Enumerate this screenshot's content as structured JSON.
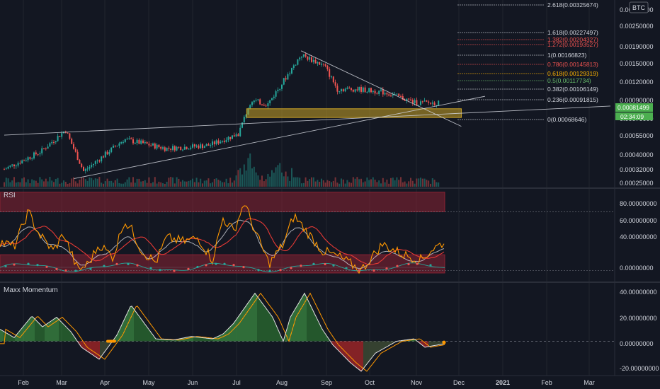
{
  "colors": {
    "background": "#131722",
    "up": "#26a69a",
    "down": "#ef5350",
    "grid": "#2a2e39",
    "text": "#d1d4dc",
    "support_zone": "#c9a227",
    "price_tag": "#4caf50",
    "rsi_line": "#ff9800",
    "rsi_ma": "#e53935",
    "rsi_smooth": "#d1d4dc",
    "rsi_band": "#8b2233",
    "fib_gold": "#ffb300",
    "fib_green": "#66bb6a",
    "fib_red": "#ef5350",
    "mom_up": "#43a047",
    "mom_down": "#c62828",
    "mom_neutral": "#4a5a3a"
  },
  "currency_badge": "BTC",
  "price_tags": {
    "last_price": "0.00081499",
    "countdown": "02:34:09"
  },
  "fib_levels": [
    {
      "label": "2.618(0.00325674)",
      "color": "#d1d4dc"
    },
    {
      "label": "1.618(0.00227497)",
      "color": "#d1d4dc"
    },
    {
      "label": "1.382(0.00204327)",
      "color": "#ef5350"
    },
    {
      "label": "1.272(0.00193527)",
      "color": "#ef5350"
    },
    {
      "label": "1(0.00166823)",
      "color": "#d1d4dc"
    },
    {
      "label": "0.786(0.00145813)",
      "color": "#ef5350"
    },
    {
      "label": "0.618(0.00129319)",
      "color": "#ffb300"
    },
    {
      "label": "0.5(0.00117734)",
      "color": "#66bb6a"
    },
    {
      "label": "0.382(0.00106149)",
      "color": "#d1d4dc"
    },
    {
      "label": "0.236(0.00091815)",
      "color": "#d1d4dc"
    },
    {
      "label": "0(0.00068646)",
      "color": "#d1d4dc"
    }
  ],
  "price_axis_ticks": [
    "0.00380000",
    "0.00250000",
    "0.00190000",
    "0.00150000",
    "0.00120000",
    "0.00090000",
    "0.00070000",
    "0.00055000",
    "0.00040000",
    "0.00032000",
    "0.00025000"
  ],
  "x_axis_ticks": [
    "Feb",
    "Mar",
    "Apr",
    "May",
    "Jun",
    "Jul",
    "Aug",
    "Sep",
    "Oct",
    "Nov",
    "Dec",
    "2021",
    "Feb",
    "Mar"
  ],
  "rsi_pane": {
    "title": "RSI",
    "ticks": [
      "80.00000000",
      "60.00000000",
      "40.00000000",
      "0.00000000"
    ]
  },
  "momentum_pane": {
    "title": "Maxx Momentum",
    "ticks": [
      "40.00000000",
      "20.00000000",
      "0.00000000",
      "-20.00000000"
    ]
  },
  "chart_data": [
    {
      "type": "candlestick",
      "title": "",
      "scale": "log",
      "ylim": [
        0.00024,
        0.0036
      ],
      "x_range": [
        "2020-01-15",
        "2021-03-25"
      ],
      "price_keypoints": [
        {
          "date": "2020-01-15",
          "close": 0.00031
        },
        {
          "date": "2020-02-10",
          "close": 0.0004
        },
        {
          "date": "2020-02-28",
          "close": 0.00055
        },
        {
          "date": "2020-03-12",
          "close": 0.0003
        },
        {
          "date": "2020-04-10",
          "close": 0.00048
        },
        {
          "date": "2020-05-10",
          "close": 0.00042
        },
        {
          "date": "2020-06-10",
          "close": 0.00044
        },
        {
          "date": "2020-07-01",
          "close": 0.00052
        },
        {
          "date": "2020-07-10",
          "close": 0.00085
        },
        {
          "date": "2020-07-22",
          "close": 0.0008
        },
        {
          "date": "2020-08-15",
          "close": 0.00165
        },
        {
          "date": "2020-09-01",
          "close": 0.0014
        },
        {
          "date": "2020-09-10",
          "close": 0.001
        },
        {
          "date": "2020-09-25",
          "close": 0.001
        },
        {
          "date": "2020-10-15",
          "close": 0.00095
        },
        {
          "date": "2020-11-05",
          "close": 0.00082
        },
        {
          "date": "2020-11-22",
          "close": 0.00081499
        }
      ],
      "support_zone": [
        0.00066,
        0.00075
      ],
      "trendlines": [
        {
          "name": "upper",
          "from": [
            "2020-08-15",
            0.00175
          ],
          "to": [
            "2020-12-08",
            0.00058
          ]
        },
        {
          "name": "lower",
          "from": [
            "2020-03-05",
            0.00027
          ],
          "to": [
            "2020-12-25",
            0.0009
          ]
        },
        {
          "name": "long",
          "from": [
            "2020-01-15",
            0.00051
          ],
          "to": [
            "2021-03-25",
            0.00078
          ]
        }
      ]
    },
    {
      "type": "line",
      "title": "RSI",
      "ylim": [
        22,
        92
      ],
      "band_levels": [
        75,
        30
      ],
      "series": [
        {
          "name": "",
          "keypoints": [
            [
              0,
              52
            ],
            [
              20,
              48
            ],
            [
              40,
              75
            ],
            [
              55,
              58
            ],
            [
              75,
              45
            ],
            [
              90,
              58
            ],
            [
              110,
              30
            ],
            [
              125,
              35
            ],
            [
              140,
              50
            ],
            [
              160,
              40
            ],
            [
              175,
              68
            ],
            [
              185,
              62
            ],
            [
              200,
              45
            ],
            [
              220,
              36
            ],
            [
              235,
              55
            ],
            [
              260,
              52
            ],
            [
              280,
              55
            ],
            [
              300,
              38
            ],
            [
              315,
              70
            ],
            [
              330,
              60
            ],
            [
              345,
              82
            ],
            [
              360,
              60
            ],
            [
              380,
              35
            ],
            [
              400,
              50
            ],
            [
              415,
              72
            ],
            [
              430,
              62
            ],
            [
              455,
              45
            ],
            [
              480,
              40
            ],
            [
              510,
              30
            ],
            [
              540,
              50
            ],
            [
              570,
              42
            ],
            [
              595,
              38
            ],
            [
              610,
              46
            ],
            [
              628,
              52
            ]
          ]
        }
      ]
    },
    {
      "type": "histogram",
      "title": "Maxx Momentum",
      "ylim": [
        -28,
        48
      ],
      "series": [
        {
          "name": "",
          "keypoints": [
            [
              0,
              10
            ],
            [
              20,
              3
            ],
            [
              45,
              21
            ],
            [
              60,
              12
            ],
            [
              80,
              20
            ],
            [
              100,
              8
            ],
            [
              115,
              -5
            ],
            [
              140,
              -15
            ],
            [
              155,
              -3
            ],
            [
              165,
              5
            ],
            [
              185,
              30
            ],
            [
              200,
              18
            ],
            [
              220,
              2
            ],
            [
              245,
              1
            ],
            [
              270,
              4
            ],
            [
              300,
              2
            ],
            [
              315,
              6
            ],
            [
              330,
              15
            ],
            [
              360,
              40
            ],
            [
              385,
              20
            ],
            [
              400,
              0
            ],
            [
              410,
              20
            ],
            [
              430,
              40
            ],
            [
              455,
              10
            ],
            [
              470,
              -3
            ],
            [
              495,
              -18
            ],
            [
              510,
              -25
            ],
            [
              530,
              -10
            ],
            [
              560,
              0
            ],
            [
              585,
              2
            ],
            [
              600,
              -5
            ],
            [
              628,
              -2
            ]
          ]
        }
      ]
    }
  ]
}
